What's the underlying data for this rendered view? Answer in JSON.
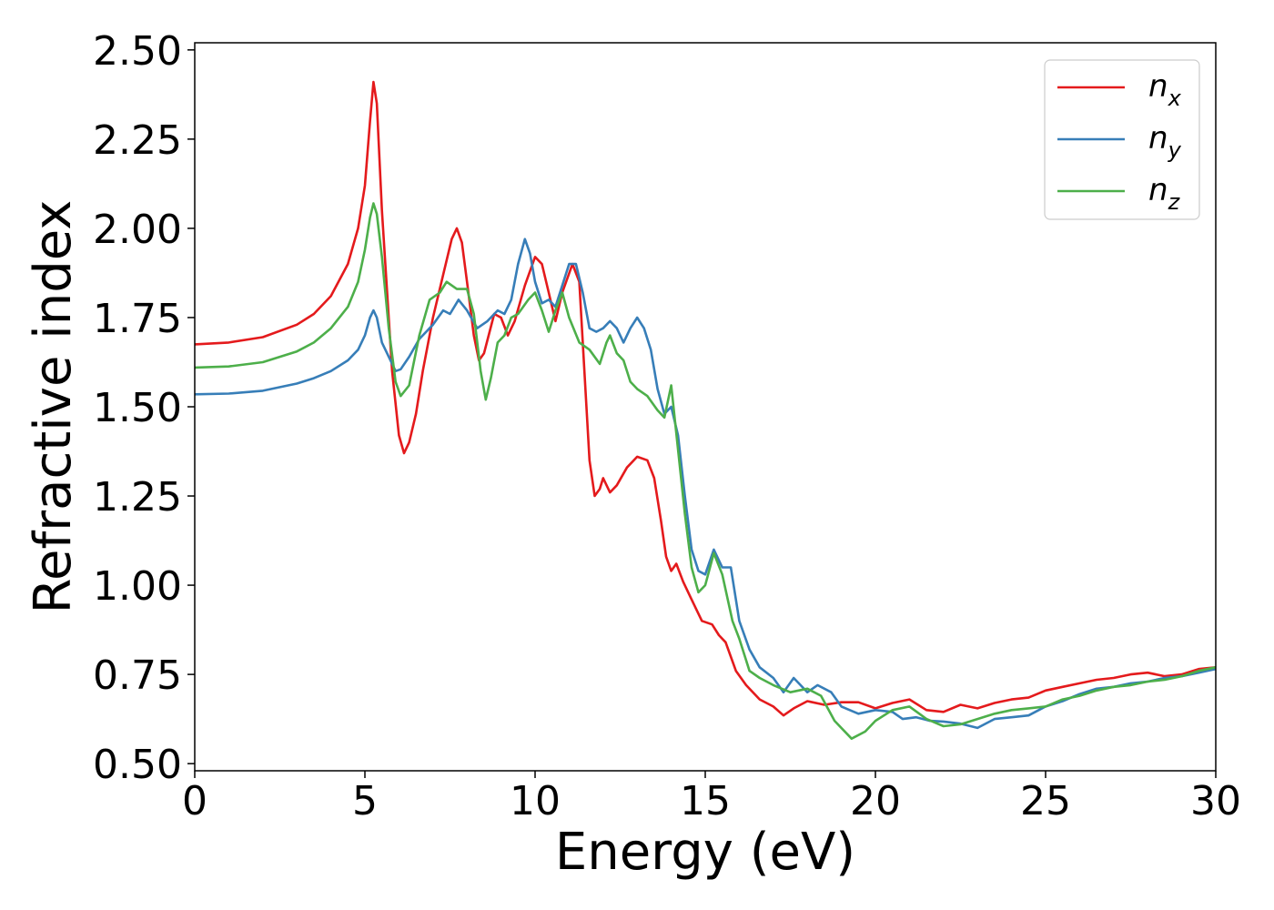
{
  "chart_data": {
    "type": "line",
    "title": "",
    "xlabel": "Energy (eV)",
    "ylabel": "Refractive index",
    "xlim": [
      0,
      30
    ],
    "ylim": [
      0.48,
      2.52
    ],
    "grid": false,
    "legend_position": "top-right",
    "x_ticks": [
      0,
      5,
      10,
      15,
      20,
      25,
      30
    ],
    "x_tick_labels": [
      "0",
      "5",
      "10",
      "15",
      "20",
      "25",
      "30"
    ],
    "y_ticks": [
      0.5,
      0.75,
      1.0,
      1.25,
      1.5,
      1.75,
      2.0,
      2.25,
      2.5
    ],
    "y_tick_labels": [
      "0.50",
      "0.75",
      "1.00",
      "1.25",
      "1.50",
      "1.75",
      "2.00",
      "2.25",
      "2.50"
    ],
    "series": [
      {
        "name": "n",
        "sub": "x",
        "color": "#e41a1c",
        "points": [
          [
            0,
            1.675
          ],
          [
            1,
            1.68
          ],
          [
            2,
            1.695
          ],
          [
            3,
            1.73
          ],
          [
            3.5,
            1.76
          ],
          [
            4,
            1.81
          ],
          [
            4.5,
            1.9
          ],
          [
            4.8,
            2.0
          ],
          [
            5.0,
            2.12
          ],
          [
            5.15,
            2.3
          ],
          [
            5.25,
            2.41
          ],
          [
            5.35,
            2.35
          ],
          [
            5.5,
            2.05
          ],
          [
            5.8,
            1.6
          ],
          [
            6.0,
            1.42
          ],
          [
            6.15,
            1.37
          ],
          [
            6.3,
            1.4
          ],
          [
            6.5,
            1.48
          ],
          [
            6.7,
            1.6
          ],
          [
            7.0,
            1.75
          ],
          [
            7.3,
            1.87
          ],
          [
            7.55,
            1.97
          ],
          [
            7.7,
            2.0
          ],
          [
            7.85,
            1.96
          ],
          [
            8.0,
            1.85
          ],
          [
            8.2,
            1.7
          ],
          [
            8.35,
            1.63
          ],
          [
            8.5,
            1.65
          ],
          [
            8.8,
            1.76
          ],
          [
            9.0,
            1.75
          ],
          [
            9.2,
            1.7
          ],
          [
            9.4,
            1.74
          ],
          [
            9.7,
            1.84
          ],
          [
            10.0,
            1.92
          ],
          [
            10.2,
            1.9
          ],
          [
            10.4,
            1.82
          ],
          [
            10.6,
            1.74
          ],
          [
            10.8,
            1.82
          ],
          [
            11.1,
            1.9
          ],
          [
            11.3,
            1.85
          ],
          [
            11.45,
            1.6
          ],
          [
            11.6,
            1.35
          ],
          [
            11.75,
            1.25
          ],
          [
            11.9,
            1.27
          ],
          [
            12.0,
            1.3
          ],
          [
            12.2,
            1.26
          ],
          [
            12.4,
            1.28
          ],
          [
            12.7,
            1.33
          ],
          [
            13.0,
            1.36
          ],
          [
            13.3,
            1.35
          ],
          [
            13.5,
            1.3
          ],
          [
            13.7,
            1.18
          ],
          [
            13.85,
            1.08
          ],
          [
            14.0,
            1.04
          ],
          [
            14.15,
            1.06
          ],
          [
            14.35,
            1.01
          ],
          [
            14.6,
            0.96
          ],
          [
            14.9,
            0.9
          ],
          [
            15.2,
            0.89
          ],
          [
            15.4,
            0.86
          ],
          [
            15.6,
            0.84
          ],
          [
            15.9,
            0.76
          ],
          [
            16.2,
            0.72
          ],
          [
            16.6,
            0.68
          ],
          [
            17.0,
            0.66
          ],
          [
            17.3,
            0.635
          ],
          [
            17.6,
            0.655
          ],
          [
            18.0,
            0.675
          ],
          [
            18.5,
            0.665
          ],
          [
            19.0,
            0.672
          ],
          [
            19.5,
            0.672
          ],
          [
            20.0,
            0.655
          ],
          [
            20.5,
            0.67
          ],
          [
            21.0,
            0.68
          ],
          [
            21.5,
            0.65
          ],
          [
            22.0,
            0.645
          ],
          [
            22.5,
            0.665
          ],
          [
            23.0,
            0.655
          ],
          [
            23.5,
            0.67
          ],
          [
            24.0,
            0.68
          ],
          [
            24.5,
            0.685
          ],
          [
            25.0,
            0.705
          ],
          [
            25.5,
            0.715
          ],
          [
            26.0,
            0.725
          ],
          [
            26.5,
            0.735
          ],
          [
            27.0,
            0.74
          ],
          [
            27.5,
            0.75
          ],
          [
            28.0,
            0.755
          ],
          [
            28.5,
            0.745
          ],
          [
            29.0,
            0.75
          ],
          [
            29.5,
            0.765
          ],
          [
            30.0,
            0.77
          ]
        ]
      },
      {
        "name": "n",
        "sub": "y",
        "color": "#377eb8",
        "points": [
          [
            0,
            1.535
          ],
          [
            1,
            1.537
          ],
          [
            2,
            1.545
          ],
          [
            3,
            1.565
          ],
          [
            3.5,
            1.58
          ],
          [
            4,
            1.6
          ],
          [
            4.5,
            1.63
          ],
          [
            4.8,
            1.66
          ],
          [
            5.0,
            1.7
          ],
          [
            5.15,
            1.75
          ],
          [
            5.25,
            1.77
          ],
          [
            5.35,
            1.75
          ],
          [
            5.5,
            1.68
          ],
          [
            5.7,
            1.64
          ],
          [
            5.9,
            1.6
          ],
          [
            6.05,
            1.605
          ],
          [
            6.3,
            1.64
          ],
          [
            6.6,
            1.69
          ],
          [
            7.0,
            1.73
          ],
          [
            7.3,
            1.77
          ],
          [
            7.5,
            1.76
          ],
          [
            7.75,
            1.8
          ],
          [
            8.0,
            1.77
          ],
          [
            8.3,
            1.72
          ],
          [
            8.6,
            1.74
          ],
          [
            8.9,
            1.77
          ],
          [
            9.1,
            1.76
          ],
          [
            9.3,
            1.8
          ],
          [
            9.5,
            1.9
          ],
          [
            9.7,
            1.97
          ],
          [
            9.85,
            1.93
          ],
          [
            10.0,
            1.85
          ],
          [
            10.2,
            1.79
          ],
          [
            10.4,
            1.8
          ],
          [
            10.6,
            1.78
          ],
          [
            10.8,
            1.84
          ],
          [
            11.0,
            1.9
          ],
          [
            11.2,
            1.9
          ],
          [
            11.4,
            1.82
          ],
          [
            11.6,
            1.72
          ],
          [
            11.8,
            1.71
          ],
          [
            12.0,
            1.72
          ],
          [
            12.2,
            1.74
          ],
          [
            12.4,
            1.72
          ],
          [
            12.6,
            1.68
          ],
          [
            12.8,
            1.72
          ],
          [
            13.0,
            1.75
          ],
          [
            13.2,
            1.72
          ],
          [
            13.4,
            1.66
          ],
          [
            13.6,
            1.55
          ],
          [
            13.8,
            1.48
          ],
          [
            14.0,
            1.5
          ],
          [
            14.2,
            1.42
          ],
          [
            14.4,
            1.25
          ],
          [
            14.6,
            1.1
          ],
          [
            14.8,
            1.04
          ],
          [
            15.0,
            1.03
          ],
          [
            15.25,
            1.1
          ],
          [
            15.5,
            1.05
          ],
          [
            15.75,
            1.05
          ],
          [
            16.0,
            0.9
          ],
          [
            16.3,
            0.82
          ],
          [
            16.6,
            0.77
          ],
          [
            17.0,
            0.74
          ],
          [
            17.3,
            0.7
          ],
          [
            17.6,
            0.74
          ],
          [
            18.0,
            0.7
          ],
          [
            18.3,
            0.72
          ],
          [
            18.7,
            0.7
          ],
          [
            19.0,
            0.66
          ],
          [
            19.5,
            0.64
          ],
          [
            20.0,
            0.65
          ],
          [
            20.5,
            0.645
          ],
          [
            20.8,
            0.625
          ],
          [
            21.2,
            0.63
          ],
          [
            21.6,
            0.62
          ],
          [
            22.0,
            0.618
          ],
          [
            22.5,
            0.612
          ],
          [
            23.0,
            0.6
          ],
          [
            23.5,
            0.625
          ],
          [
            24.0,
            0.63
          ],
          [
            24.5,
            0.635
          ],
          [
            25.0,
            0.66
          ],
          [
            25.5,
            0.675
          ],
          [
            26.0,
            0.695
          ],
          [
            26.5,
            0.71
          ],
          [
            27.0,
            0.715
          ],
          [
            27.5,
            0.725
          ],
          [
            28.0,
            0.73
          ],
          [
            28.5,
            0.74
          ],
          [
            29.0,
            0.745
          ],
          [
            29.5,
            0.755
          ],
          [
            30.0,
            0.765
          ]
        ]
      },
      {
        "name": "n",
        "sub": "z",
        "color": "#4daf4a",
        "points": [
          [
            0,
            1.61
          ],
          [
            1,
            1.613
          ],
          [
            2,
            1.625
          ],
          [
            3,
            1.655
          ],
          [
            3.5,
            1.68
          ],
          [
            4,
            1.72
          ],
          [
            4.5,
            1.78
          ],
          [
            4.8,
            1.85
          ],
          [
            5.0,
            1.94
          ],
          [
            5.15,
            2.03
          ],
          [
            5.25,
            2.07
          ],
          [
            5.35,
            2.04
          ],
          [
            5.5,
            1.92
          ],
          [
            5.7,
            1.72
          ],
          [
            5.9,
            1.57
          ],
          [
            6.05,
            1.53
          ],
          [
            6.3,
            1.56
          ],
          [
            6.6,
            1.7
          ],
          [
            6.9,
            1.8
          ],
          [
            7.2,
            1.82
          ],
          [
            7.4,
            1.85
          ],
          [
            7.7,
            1.83
          ],
          [
            8.0,
            1.83
          ],
          [
            8.2,
            1.76
          ],
          [
            8.4,
            1.6
          ],
          [
            8.55,
            1.52
          ],
          [
            8.7,
            1.58
          ],
          [
            8.9,
            1.68
          ],
          [
            9.1,
            1.7
          ],
          [
            9.3,
            1.75
          ],
          [
            9.5,
            1.76
          ],
          [
            9.8,
            1.8
          ],
          [
            10.0,
            1.82
          ],
          [
            10.2,
            1.77
          ],
          [
            10.4,
            1.71
          ],
          [
            10.6,
            1.77
          ],
          [
            10.8,
            1.82
          ],
          [
            11.0,
            1.75
          ],
          [
            11.3,
            1.68
          ],
          [
            11.6,
            1.66
          ],
          [
            11.9,
            1.62
          ],
          [
            12.1,
            1.68
          ],
          [
            12.2,
            1.7
          ],
          [
            12.4,
            1.65
          ],
          [
            12.6,
            1.63
          ],
          [
            12.8,
            1.57
          ],
          [
            13.0,
            1.55
          ],
          [
            13.3,
            1.53
          ],
          [
            13.6,
            1.49
          ],
          [
            13.8,
            1.47
          ],
          [
            14.0,
            1.56
          ],
          [
            14.2,
            1.38
          ],
          [
            14.4,
            1.2
          ],
          [
            14.6,
            1.05
          ],
          [
            14.8,
            0.98
          ],
          [
            15.0,
            1.0
          ],
          [
            15.25,
            1.09
          ],
          [
            15.5,
            1.03
          ],
          [
            15.8,
            0.9
          ],
          [
            16.0,
            0.85
          ],
          [
            16.3,
            0.76
          ],
          [
            16.6,
            0.74
          ],
          [
            17.0,
            0.72
          ],
          [
            17.5,
            0.7
          ],
          [
            18.0,
            0.71
          ],
          [
            18.4,
            0.69
          ],
          [
            18.8,
            0.62
          ],
          [
            19.3,
            0.57
          ],
          [
            19.7,
            0.59
          ],
          [
            20.0,
            0.62
          ],
          [
            20.5,
            0.65
          ],
          [
            21.0,
            0.66
          ],
          [
            21.5,
            0.625
          ],
          [
            22.0,
            0.605
          ],
          [
            22.5,
            0.61
          ],
          [
            23.0,
            0.625
          ],
          [
            23.5,
            0.64
          ],
          [
            24.0,
            0.65
          ],
          [
            24.5,
            0.655
          ],
          [
            25.0,
            0.66
          ],
          [
            25.5,
            0.68
          ],
          [
            26.0,
            0.69
          ],
          [
            26.5,
            0.705
          ],
          [
            27.0,
            0.715
          ],
          [
            27.5,
            0.72
          ],
          [
            28.0,
            0.73
          ],
          [
            28.5,
            0.735
          ],
          [
            29.0,
            0.745
          ],
          [
            29.5,
            0.76
          ],
          [
            30.0,
            0.77
          ]
        ]
      }
    ]
  }
}
